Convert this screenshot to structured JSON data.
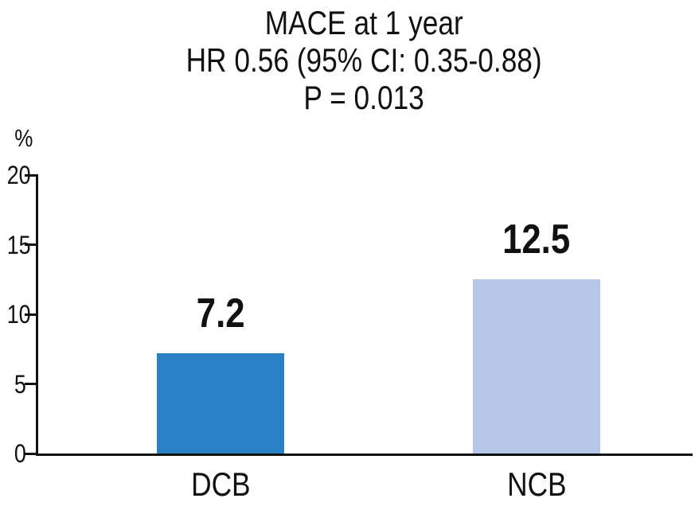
{
  "chart_data": {
    "type": "bar",
    "title": "MACE at 1 year",
    "subtitle": "HR 0.56 (95% CI: 0.35-0.88)",
    "p_value_line": "P = 0.013",
    "ylabel": "%",
    "categories": [
      "DCB",
      "NCB"
    ],
    "values": [
      7.2,
      12.5
    ],
    "value_labels": [
      "7.2",
      "12.5"
    ],
    "bar_colors": [
      "#2981C3",
      "#B6C8E8"
    ],
    "axis_color": "#111111",
    "text_color": "#111111",
    "ylim": [
      0,
      20
    ],
    "yticks": [
      0,
      5,
      10,
      15,
      20
    ],
    "grid": false,
    "legend": "none"
  }
}
